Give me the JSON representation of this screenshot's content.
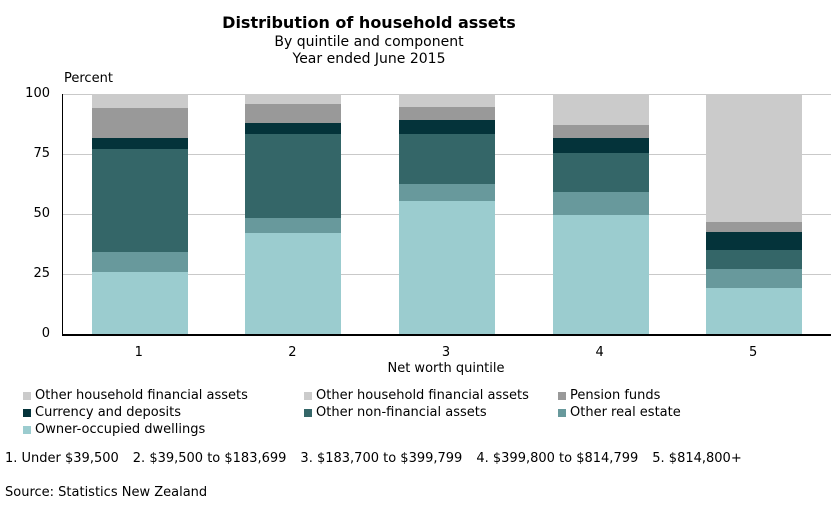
{
  "chart_data": {
    "type": "bar",
    "variant": "stacked-percent",
    "title": "Distribution of household assets",
    "subtitle": "By quintile and component",
    "period": "Year ended June 2015",
    "ylabel": "Percent",
    "xlabel": "Net worth quintile",
    "ylim": [
      0,
      100
    ],
    "yticks": [
      0,
      25,
      50,
      75,
      100
    ],
    "grid": true,
    "legend_position": "bottom",
    "categories": [
      "1",
      "2",
      "3",
      "4",
      "5"
    ],
    "series": [
      {
        "name": "Owner-occupied dwellings",
        "color": "#9bcccf",
        "values": [
          26,
          42,
          55.5,
          49.5,
          19
        ]
      },
      {
        "name": "Other real estate",
        "color": "#68999c",
        "values": [
          8,
          6.5,
          7,
          9.5,
          8
        ]
      },
      {
        "name": "Other non-financial assets",
        "color": "#346668",
        "values": [
          43,
          35,
          21,
          16.5,
          8
        ]
      },
      {
        "name": "Currency and deposits",
        "color": "#04333a",
        "values": [
          4.5,
          4.5,
          5.5,
          6,
          7.5
        ]
      },
      {
        "name": "Pension funds",
        "color": "#999999",
        "values": [
          12.5,
          8,
          5.5,
          5.5,
          4
        ]
      },
      {
        "name": "Other household financial assets",
        "color": "#cbcbcb",
        "values": [
          6,
          4,
          5.5,
          13,
          53.5
        ]
      }
    ]
  },
  "legend": {
    "columns": [
      [
        {
          "label": "Other household financial assets",
          "color": "#cbcbcb"
        },
        {
          "label": "Currency and deposits",
          "color": "#04333a"
        },
        {
          "label": "Owner-occupied dwellings",
          "color": "#9bcccf"
        }
      ],
      [
        {
          "label": "Other household financial assets",
          "color": "#cbcbcb"
        },
        {
          "label": "Other non-financial assets",
          "color": "#346668"
        }
      ],
      [
        {
          "label": "Pension funds",
          "color": "#999999"
        },
        {
          "label": "Other real estate",
          "color": "#68999c"
        }
      ]
    ]
  },
  "footnotes": [
    "1. Under $39,500",
    "2. $39,500 to $183,699",
    "3. $183,700 to $399,799",
    "4. $399,800 to $814,799",
    "5. $814,800+"
  ],
  "source": "Source: Statistics New Zealand",
  "colors": {
    "axis": "#000000",
    "gridline": "#c9c9c9",
    "text": "#000000",
    "background": "#ffffff"
  }
}
